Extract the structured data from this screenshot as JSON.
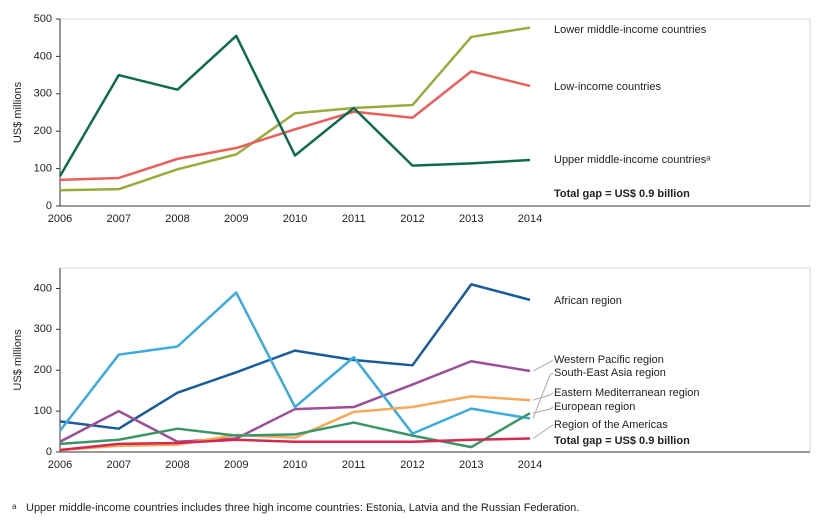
{
  "chart_data": [
    {
      "type": "line",
      "ylabel": "US$ millions",
      "categories": [
        "2006",
        "2007",
        "2008",
        "2009",
        "2010",
        "2011",
        "2012",
        "2013",
        "2014"
      ],
      "ylim": [
        0,
        500
      ],
      "yticks": [
        0,
        100,
        200,
        300,
        400,
        500
      ],
      "series": [
        {
          "name": "Lower middle-income countries",
          "color": "#9aab3c",
          "values": [
            42,
            45,
            98,
            138,
            248,
            262,
            270,
            452,
            477
          ]
        },
        {
          "name": "Low-income countries",
          "color": "#e8605e",
          "values": [
            70,
            75,
            126,
            155,
            205,
            252,
            236,
            360,
            321
          ]
        },
        {
          "name": "Upper middle-income countriesᵃ",
          "color": "#0f6b50",
          "values": [
            80,
            350,
            311,
            455,
            135,
            262,
            108,
            114,
            123
          ]
        }
      ],
      "annotation": "Total gap = US$ 0.9 billion"
    },
    {
      "type": "line",
      "ylabel": "US$ millions",
      "categories": [
        "2006",
        "2007",
        "2008",
        "2009",
        "2010",
        "2011",
        "2012",
        "2013",
        "2014"
      ],
      "ylim": [
        0,
        450
      ],
      "yticks": [
        0,
        100,
        200,
        300,
        400
      ],
      "series": [
        {
          "name": "African region",
          "color": "#1a5c9a",
          "values": [
            75,
            57,
            145,
            195,
            248,
            225,
            212,
            410,
            372
          ]
        },
        {
          "name": "Western Pacific region",
          "color": "#9b4f96",
          "values": [
            25,
            100,
            25,
            33,
            105,
            110,
            165,
            222,
            198
          ]
        },
        {
          "name": "South-East Asia region",
          "color": "#3aabdc",
          "values": [
            52,
            238,
            258,
            390,
            110,
            232,
            45,
            106,
            82
          ]
        },
        {
          "name": "Eastern Mediterranean region",
          "color": "#f5a95a",
          "values": [
            5,
            15,
            18,
            42,
            35,
            98,
            110,
            136,
            127
          ]
        },
        {
          "name": "European region",
          "color": "#3a9668",
          "values": [
            20,
            30,
            57,
            40,
            43,
            72,
            40,
            12,
            95
          ]
        },
        {
          "name": "Region of the Americas",
          "color": "#d42a4e",
          "values": [
            5,
            20,
            22,
            30,
            25,
            25,
            25,
            30,
            33
          ]
        }
      ],
      "annotation": "Total gap = US$ 0.9 billion"
    }
  ],
  "footnote": {
    "marker": "a",
    "text": "Upper middle-income countries includes three high income countries: Estonia, Latvia and the Russian Federation."
  }
}
